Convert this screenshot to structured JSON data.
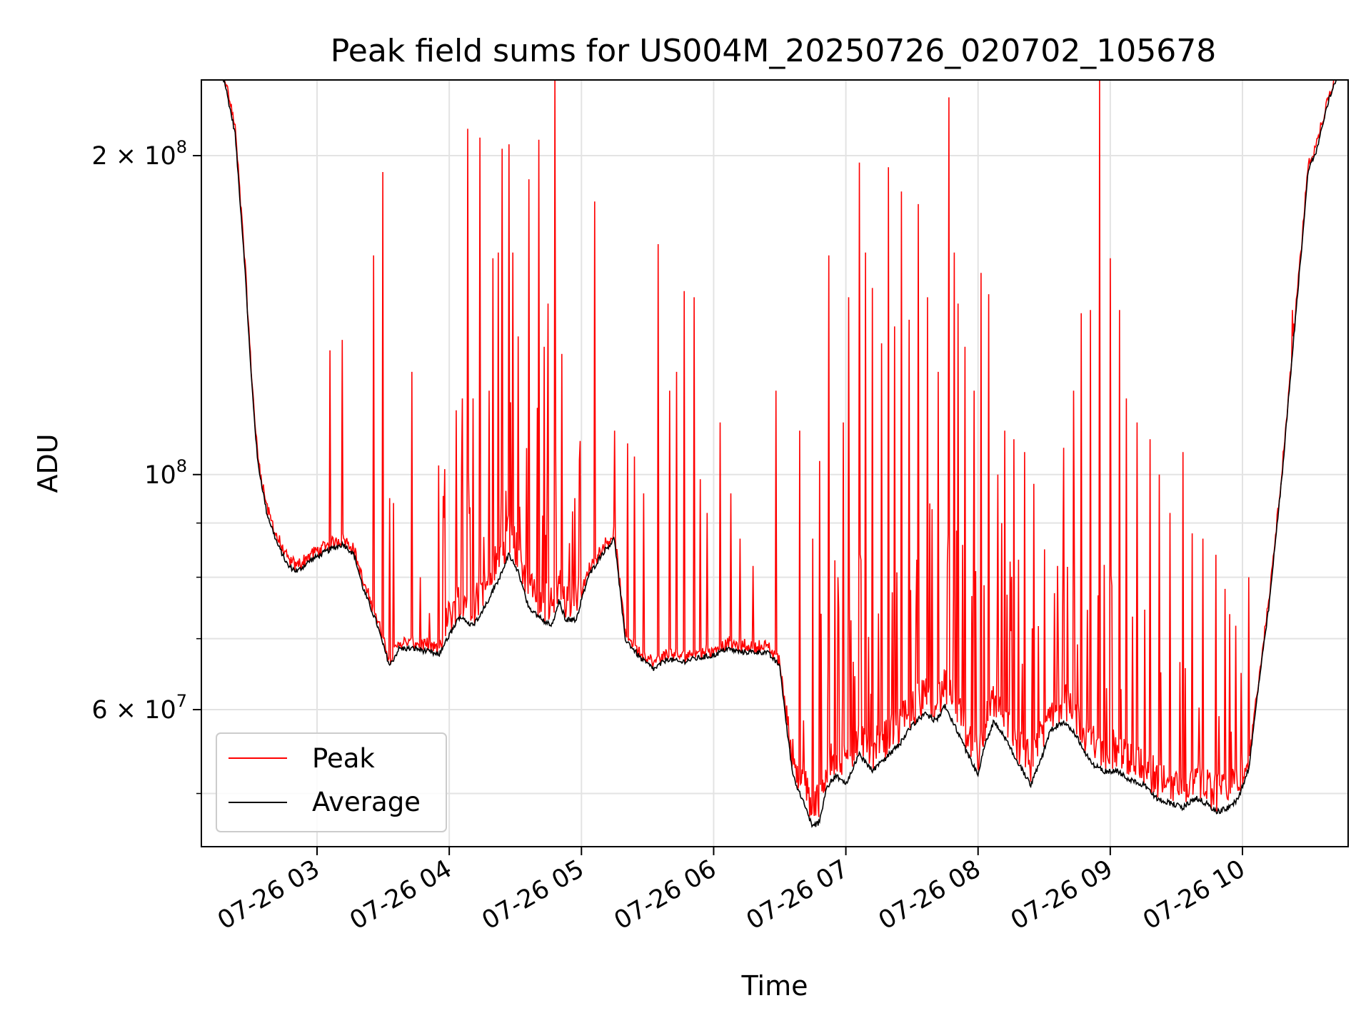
{
  "chart_data": {
    "type": "line",
    "title": "Peak field sums for US004M_20250726_020702_105678",
    "xlabel": "Time",
    "ylabel": "ADU",
    "yscale": "log",
    "xlim": [
      "2025-07-26 02:07",
      "2025-07-26 10:48"
    ],
    "ylim": [
      45000000,
      250000000
    ],
    "grid": true,
    "legend_position": "lower-left",
    "x_tick_labels": [
      "07-26 03",
      "07-26 04",
      "07-26 05",
      "07-26 06",
      "07-26 07",
      "07-26 08",
      "07-26 09",
      "07-26 10"
    ],
    "y_tick_labels": [
      {
        "value": 60000000,
        "mantissa": "6",
        "exponent": "7"
      },
      {
        "value": 100000000,
        "mantissa": "",
        "exponent": "8"
      },
      {
        "value": 200000000,
        "mantissa": "2",
        "exponent": "8"
      }
    ],
    "average_series": {
      "name": "Average",
      "color": "#000000",
      "x_unit": "hours after 2025-07-26 00:00",
      "points": [
        [
          2.12,
          250000000
        ],
        [
          2.2,
          245000000
        ],
        [
          2.3,
          235000000
        ],
        [
          2.38,
          210000000
        ],
        [
          2.45,
          160000000
        ],
        [
          2.5,
          125000000
        ],
        [
          2.55,
          103000000
        ],
        [
          2.62,
          92000000
        ],
        [
          2.7,
          86000000
        ],
        [
          2.78,
          82000000
        ],
        [
          2.85,
          81000000
        ],
        [
          2.95,
          83000000
        ],
        [
          3.1,
          85000000
        ],
        [
          3.2,
          86000000
        ],
        [
          3.28,
          84000000
        ],
        [
          3.35,
          78000000
        ],
        [
          3.45,
          72500000
        ],
        [
          3.5,
          69000000
        ],
        [
          3.55,
          66000000
        ],
        [
          3.62,
          68500000
        ],
        [
          3.75,
          68500000
        ],
        [
          3.85,
          68000000
        ],
        [
          3.92,
          67500000
        ],
        [
          4.0,
          70500000
        ],
        [
          4.08,
          73500000
        ],
        [
          4.18,
          72000000
        ],
        [
          4.28,
          75500000
        ],
        [
          4.38,
          80000000
        ],
        [
          4.45,
          84000000
        ],
        [
          4.52,
          81000000
        ],
        [
          4.6,
          75000000
        ],
        [
          4.7,
          73000000
        ],
        [
          4.78,
          72000000
        ],
        [
          4.83,
          76000000
        ],
        [
          4.88,
          73000000
        ],
        [
          4.96,
          73000000
        ],
        [
          5.05,
          80000000
        ],
        [
          5.15,
          84000000
        ],
        [
          5.25,
          87000000
        ],
        [
          5.33,
          70000000
        ],
        [
          5.45,
          67000000
        ],
        [
          5.55,
          65500000
        ],
        [
          5.65,
          67000000
        ],
        [
          5.75,
          66500000
        ],
        [
          5.85,
          67000000
        ],
        [
          6.0,
          67500000
        ],
        [
          6.1,
          68500000
        ],
        [
          6.2,
          68000000
        ],
        [
          6.3,
          68000000
        ],
        [
          6.4,
          68000000
        ],
        [
          6.5,
          66000000
        ],
        [
          6.55,
          58000000
        ],
        [
          6.6,
          52000000
        ],
        [
          6.68,
          49000000
        ],
        [
          6.75,
          46500000
        ],
        [
          6.8,
          47000000
        ],
        [
          6.85,
          50500000
        ],
        [
          6.92,
          52000000
        ],
        [
          7.0,
          51000000
        ],
        [
          7.1,
          54500000
        ],
        [
          7.2,
          52500000
        ],
        [
          7.3,
          54000000
        ],
        [
          7.4,
          55500000
        ],
        [
          7.5,
          58000000
        ],
        [
          7.6,
          59500000
        ],
        [
          7.68,
          58500000
        ],
        [
          7.75,
          60500000
        ],
        [
          7.82,
          58000000
        ],
        [
          7.92,
          54500000
        ],
        [
          8.0,
          52000000
        ],
        [
          8.05,
          55500000
        ],
        [
          8.12,
          58500000
        ],
        [
          8.2,
          56500000
        ],
        [
          8.3,
          53500000
        ],
        [
          8.4,
          51000000
        ],
        [
          8.47,
          53500000
        ],
        [
          8.55,
          57500000
        ],
        [
          8.65,
          58500000
        ],
        [
          8.75,
          56500000
        ],
        [
          8.85,
          53500000
        ],
        [
          8.95,
          52500000
        ],
        [
          9.05,
          52500000
        ],
        [
          9.15,
          51500000
        ],
        [
          9.25,
          51000000
        ],
        [
          9.35,
          49500000
        ],
        [
          9.45,
          49000000
        ],
        [
          9.55,
          48500000
        ],
        [
          9.65,
          49500000
        ],
        [
          9.72,
          49000000
        ],
        [
          9.8,
          48000000
        ],
        [
          9.9,
          48500000
        ],
        [
          9.97,
          49500000
        ],
        [
          10.05,
          53000000
        ],
        [
          10.12,
          63000000
        ],
        [
          10.2,
          75000000
        ],
        [
          10.3,
          100000000
        ],
        [
          10.4,
          140000000
        ],
        [
          10.5,
          195000000
        ],
        [
          10.55,
          200000000
        ],
        [
          10.65,
          225000000
        ],
        [
          10.75,
          245000000
        ],
        [
          10.8,
          250000000
        ]
      ]
    },
    "peak_series": {
      "name": "Peak",
      "color": "#ff0000",
      "x_unit": "hours after 2025-07-26 00:00",
      "spikes": [
        [
          3.1,
          131000000
        ],
        [
          3.19,
          134000000
        ],
        [
          3.43,
          161000000
        ],
        [
          3.5,
          193000000
        ],
        [
          3.55,
          95000000
        ],
        [
          3.58,
          94000000
        ],
        [
          3.72,
          125000000
        ],
        [
          3.78,
          80000000
        ],
        [
          3.85,
          74000000
        ],
        [
          3.92,
          102000000
        ],
        [
          3.96,
          91000000
        ],
        [
          4.05,
          115000000
        ],
        [
          4.1,
          118000000
        ],
        [
          4.14,
          212000000
        ],
        [
          4.18,
          118000000
        ],
        [
          4.23,
          208000000
        ],
        [
          4.3,
          120000000
        ],
        [
          4.33,
          160000000
        ],
        [
          4.37,
          162000000
        ],
        [
          4.4,
          203000000
        ],
        [
          4.45,
          205000000
        ],
        [
          4.48,
          162000000
        ],
        [
          4.52,
          135000000
        ],
        [
          4.6,
          190000000
        ],
        [
          4.68,
          207000000
        ],
        [
          4.72,
          132000000
        ],
        [
          4.75,
          145000000
        ],
        [
          4.8,
          239000000
        ],
        [
          4.85,
          130000000
        ],
        [
          4.95,
          95000000
        ],
        [
          5.1,
          181000000
        ],
        [
          5.25,
          110000000
        ],
        [
          5.35,
          107000000
        ],
        [
          5.4,
          104000000
        ],
        [
          5.47,
          96000000
        ],
        [
          5.58,
          165000000
        ],
        [
          5.67,
          120000000
        ],
        [
          5.72,
          125000000
        ],
        [
          5.78,
          149000000
        ],
        [
          5.85,
          147000000
        ],
        [
          5.9,
          99000000
        ],
        [
          5.95,
          92000000
        ],
        [
          6.05,
          112000000
        ],
        [
          6.13,
          96000000
        ],
        [
          6.2,
          87000000
        ],
        [
          6.3,
          82000000
        ],
        [
          6.47,
          120000000
        ],
        [
          6.65,
          110000000
        ],
        [
          6.75,
          87000000
        ],
        [
          6.8,
          103000000
        ],
        [
          6.87,
          161000000
        ],
        [
          6.92,
          83000000
        ],
        [
          6.98,
          112000000
        ],
        [
          7.02,
          147000000
        ],
        [
          7.1,
          197000000
        ],
        [
          7.15,
          162000000
        ],
        [
          7.2,
          150000000
        ],
        [
          7.27,
          133000000
        ],
        [
          7.32,
          195000000
        ],
        [
          7.37,
          138000000
        ],
        [
          7.42,
          185000000
        ],
        [
          7.48,
          140000000
        ],
        [
          7.55,
          180000000
        ],
        [
          7.62,
          147000000
        ],
        [
          7.7,
          125000000
        ],
        [
          7.78,
          227000000
        ],
        [
          7.82,
          162000000
        ],
        [
          7.85,
          145000000
        ],
        [
          7.9,
          132000000
        ],
        [
          7.97,
          120000000
        ],
        [
          8.02,
          155000000
        ],
        [
          8.08,
          148000000
        ],
        [
          8.15,
          100000000
        ],
        [
          8.2,
          110000000
        ],
        [
          8.27,
          108000000
        ],
        [
          8.35,
          105000000
        ],
        [
          8.42,
          98000000
        ],
        [
          8.5,
          85000000
        ],
        [
          8.6,
          82000000
        ],
        [
          8.65,
          106000000
        ],
        [
          8.72,
          120000000
        ],
        [
          8.78,
          142000000
        ],
        [
          8.85,
          143000000
        ],
        [
          8.92,
          238000000
        ],
        [
          9.0,
          160000000
        ],
        [
          9.07,
          143000000
        ],
        [
          9.12,
          118000000
        ],
        [
          9.2,
          112000000
        ],
        [
          9.3,
          108000000
        ],
        [
          9.37,
          100000000
        ],
        [
          9.45,
          92000000
        ],
        [
          9.55,
          105000000
        ],
        [
          9.62,
          88000000
        ],
        [
          9.7,
          87000000
        ],
        [
          9.8,
          84000000
        ],
        [
          9.87,
          78000000
        ],
        [
          9.95,
          72000000
        ],
        [
          10.05,
          80000000
        ],
        [
          10.38,
          143000000
        ]
      ]
    }
  }
}
